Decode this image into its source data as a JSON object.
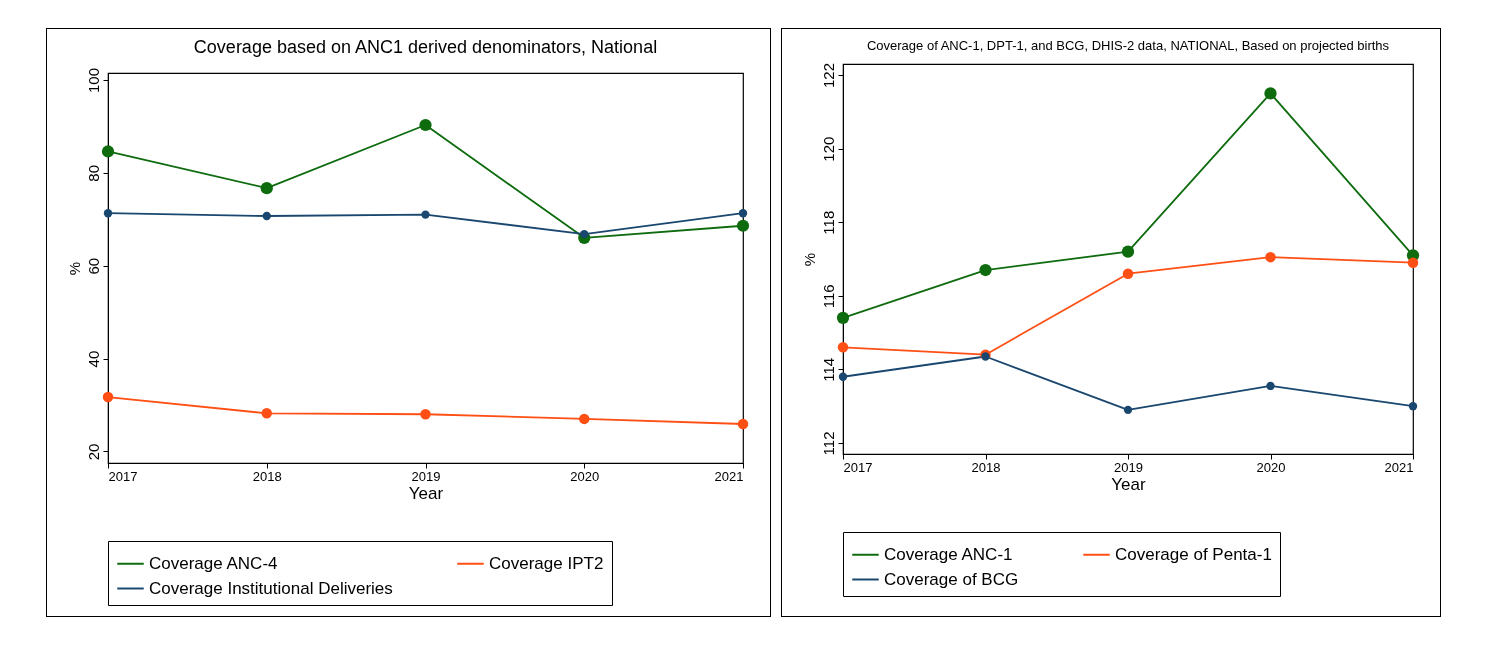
{
  "chart_data": [
    {
      "type": "line",
      "title": "Coverage based on ANC1 derived denominators, National",
      "xlabel": "Year",
      "ylabel": "%",
      "x": [
        2017,
        2018,
        2019,
        2020,
        2021
      ],
      "xlim": [
        2017,
        2021
      ],
      "xticks": [
        2017,
        2018,
        2019,
        2020,
        2021
      ],
      "ylim": [
        17.5,
        101.5
      ],
      "yticks": [
        20,
        40,
        60,
        80,
        100
      ],
      "grid": false,
      "legend": "bottom",
      "marker": "circle",
      "series": [
        {
          "name": "Coverage ANC-4",
          "color": "#0e6b0e",
          "values": [
            84.6,
            76.7,
            90.3,
            66.0,
            68.6
          ]
        },
        {
          "name": "Coverage IPT2",
          "color": "#ff4f14",
          "values": [
            31.7,
            28.2,
            28.0,
            27.0,
            25.9
          ]
        },
        {
          "name": "Coverage Institutional Deliveries",
          "color": "#1a476f",
          "values": [
            71.3,
            70.7,
            71.0,
            66.8,
            71.3
          ]
        }
      ]
    },
    {
      "type": "line",
      "title": "Coverage of ANC-1, DPT-1, and BCG, DHIS-2 data, NATIONAL, Based on projected births",
      "xlabel": "Year",
      "ylabel": "%",
      "x": [
        2017,
        2018,
        2019,
        2020,
        2021
      ],
      "xlim": [
        2017,
        2021
      ],
      "xticks": [
        2017,
        2018,
        2019,
        2020,
        2021
      ],
      "ylim": [
        111.7,
        122.3
      ],
      "yticks": [
        112,
        114,
        116,
        118,
        120,
        122
      ],
      "grid": false,
      "legend": "bottom",
      "marker": "circle",
      "series": [
        {
          "name": "Coverage ANC-1",
          "color": "#0e6b0e",
          "values": [
            115.4,
            116.7,
            117.2,
            121.5,
            117.1
          ]
        },
        {
          "name": "Coverage of Penta-1",
          "color": "#ff4f14",
          "values": [
            114.6,
            114.4,
            116.6,
            117.05,
            116.9
          ]
        },
        {
          "name": "Coverage of BCG",
          "color": "#1a476f",
          "values": [
            113.8,
            114.35,
            112.9,
            113.55,
            113.0
          ]
        }
      ]
    }
  ]
}
